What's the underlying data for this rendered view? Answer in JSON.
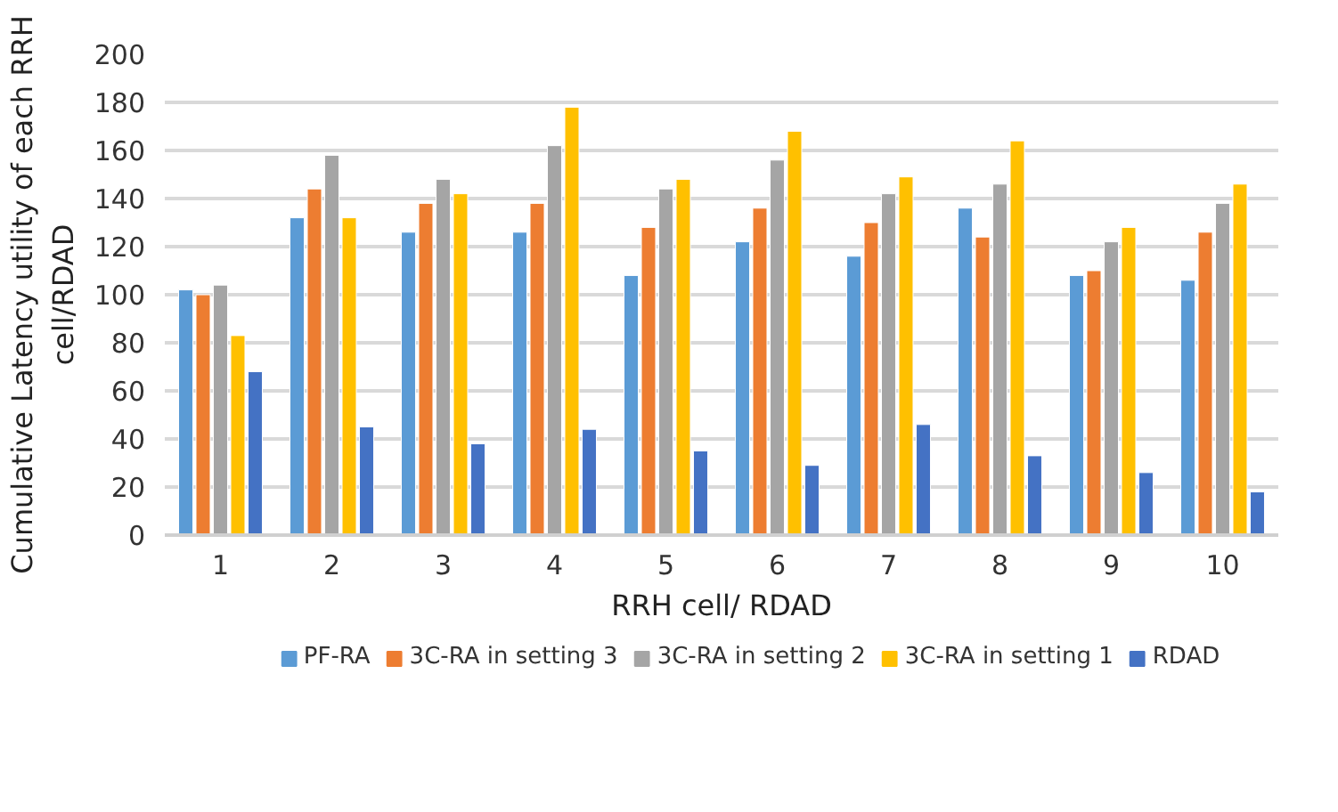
{
  "chart_data": {
    "type": "bar",
    "categories": [
      "1",
      "2",
      "3",
      "4",
      "5",
      "6",
      "7",
      "8",
      "9",
      "10"
    ],
    "xlabel": "RRH cell/ RDAD",
    "ylabel": "Cumulative Latency utility of each RRH cell/RDAD",
    "ylim": [
      0,
      200
    ],
    "yticks": [
      0,
      20,
      40,
      60,
      80,
      100,
      120,
      140,
      160,
      180,
      200
    ],
    "grid": "y",
    "legend": "bottom",
    "series": [
      {
        "name": "PF-RA",
        "color": "#5b9bd5",
        "values": [
          102,
          132,
          126,
          126,
          108,
          122,
          116,
          136,
          108,
          106
        ]
      },
      {
        "name": "3C-RA in setting 3",
        "color": "#ed7d31",
        "values": [
          100,
          144,
          138,
          138,
          128,
          136,
          130,
          124,
          110,
          126
        ]
      },
      {
        "name": "3C-RA in setting 2",
        "color": "#a5a5a5",
        "values": [
          104,
          158,
          148,
          162,
          144,
          156,
          142,
          146,
          122,
          138
        ]
      },
      {
        "name": "3C-RA in setting 1",
        "color": "#ffc000",
        "values": [
          83,
          132,
          142,
          178,
          148,
          168,
          149,
          164,
          128,
          146
        ]
      },
      {
        "name": "RDAD",
        "color": "#4472c4",
        "values": [
          68,
          45,
          38,
          44,
          35,
          29,
          46,
          33,
          26,
          18
        ]
      }
    ]
  }
}
